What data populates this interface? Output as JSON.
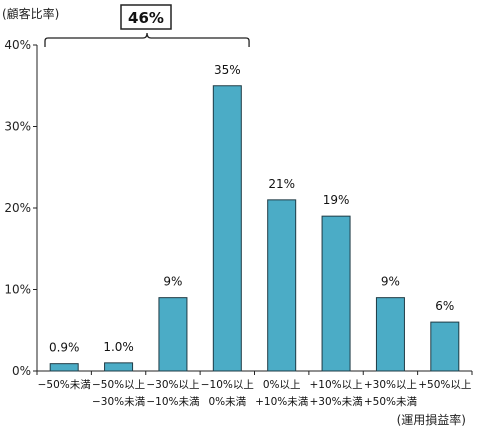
{
  "chart_data": {
    "type": "bar",
    "ylabel": "(顧客比率)",
    "xlabel": "(運用損益率)",
    "ylim": [
      0,
      40
    ],
    "yticks": [
      "0%",
      "10%",
      "20%",
      "30%",
      "40%"
    ],
    "categories": [
      [
        "−50%未満",
        ""
      ],
      [
        "−50%以上",
        "−30%未満"
      ],
      [
        "−30%以上",
        "−10%未満"
      ],
      [
        "−10%以上",
        "0%未満"
      ],
      [
        "0%以上",
        "+10%未満"
      ],
      [
        "+10%以上",
        "+30%未満"
      ],
      [
        "+30%以上",
        "+50%未満"
      ],
      [
        "+50%以上",
        ""
      ]
    ],
    "values": [
      0.9,
      1.0,
      9,
      35,
      21,
      19,
      9,
      6
    ],
    "value_labels": [
      "0.9%",
      "1.0%",
      "9%",
      "35%",
      "21%",
      "19%",
      "9%",
      "6%"
    ],
    "bar_color": "#4bacc6",
    "bar_edge_color": "#1f3b45",
    "grid": false,
    "annotation": {
      "text": "46%",
      "brace_from_category": 0,
      "brace_to_category": 3
    }
  }
}
